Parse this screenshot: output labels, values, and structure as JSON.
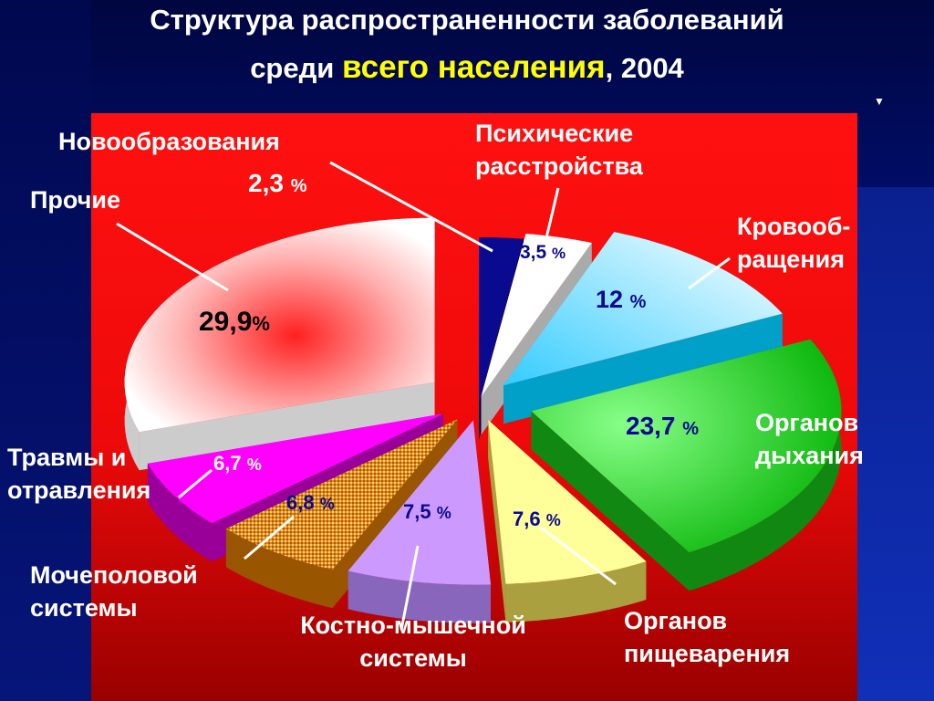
{
  "title": {
    "line1": "Структура распространенности заболеваний",
    "line2_prefix": "среди ",
    "line2_highlight": "всего населения",
    "line2_suffix": ", 2004"
  },
  "colors": {
    "panel": "#ff1a1a",
    "novoobr": "#0a0a90",
    "psych": "#ffffff",
    "krov": "#66ddff",
    "dyh": "#22cc22",
    "pisch": "#ffff88",
    "kost": "#cc99ff",
    "moch": "#ffaa33",
    "travmy": "#ff00ff",
    "prochie": "#ffeeee"
  },
  "chart_data": {
    "type": "pie",
    "title": "Структура распространенности заболеваний среди всего населения, 2004",
    "unit": "%",
    "slices": [
      {
        "label": "Новообразования",
        "value": 2.3,
        "value_text": "2,3",
        "color": "#0a0a90"
      },
      {
        "label": "Психические расстройства",
        "value": 3.5,
        "value_text": "3,5",
        "color": "#ffffff"
      },
      {
        "label": "Кровообращения",
        "value": 12,
        "value_text": "12",
        "color": "#66ddff"
      },
      {
        "label": "Органов дыхания",
        "value": 23.7,
        "value_text": "23,7",
        "color": "#22cc22"
      },
      {
        "label": "Органов пищеварения",
        "value": 7.6,
        "value_text": "7,6",
        "color": "#ffff88"
      },
      {
        "label": "Костно-мышечной системы",
        "value": 7.5,
        "value_text": "7,5",
        "color": "#cc99ff"
      },
      {
        "label": "Мочеполовой системы",
        "value": 6.8,
        "value_text": "6,8",
        "color": "#ffaa33"
      },
      {
        "label": "Травмы и отравления",
        "value": 6.7,
        "value_text": "6,7",
        "color": "#ff00ff"
      },
      {
        "label": "Прочие",
        "value": 29.9,
        "value_text": "29,9",
        "color": "#ffeeee"
      }
    ]
  },
  "labels": {
    "novoobr": "Новообразования",
    "psych_l1": "Психические",
    "psych_l2": "расстройства",
    "krov_l1": "Кровооб-",
    "krov_l2": "ращения",
    "dyh_l1": "Органов",
    "dyh_l2": "дыхания",
    "pisch_l1": "Органов",
    "pisch_l2": "пищеварения",
    "kost_l1": "Костно-мышечной",
    "kost_l2": "системы",
    "moch_l1": "Мочеполовой",
    "moch_l2": "системы",
    "travmy_l1": "Травмы и",
    "travmy_l2": "отравления",
    "prochie": "Прочие",
    "pct": "%"
  }
}
